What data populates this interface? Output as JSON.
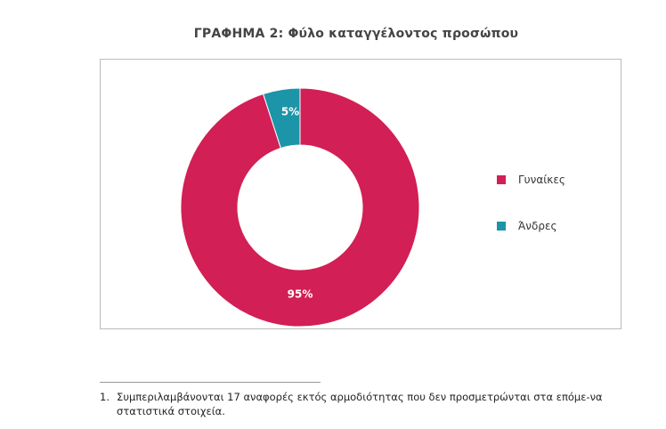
{
  "chart_data": {
    "type": "pie",
    "title": "ΓΡΑΦΗΜΑ 2: Φύλο καταγγέλοντος  προσώπου",
    "donut": true,
    "legend_position": "right",
    "slices": [
      {
        "name": "Γυναίκες",
        "value": 95,
        "label": "95%",
        "color": "#d21f55"
      },
      {
        "name": "Άνδρες",
        "value": 5,
        "label": "5%",
        "color": "#1b95a7"
      }
    ]
  },
  "footnote": {
    "number": "1.",
    "text": "Συμπεριλαμβάνονται 17 αναφορές εκτός αρμοδιότητας που δεν προσμετρώνται στα επόμε-να στατιστικά στοιχεία."
  }
}
